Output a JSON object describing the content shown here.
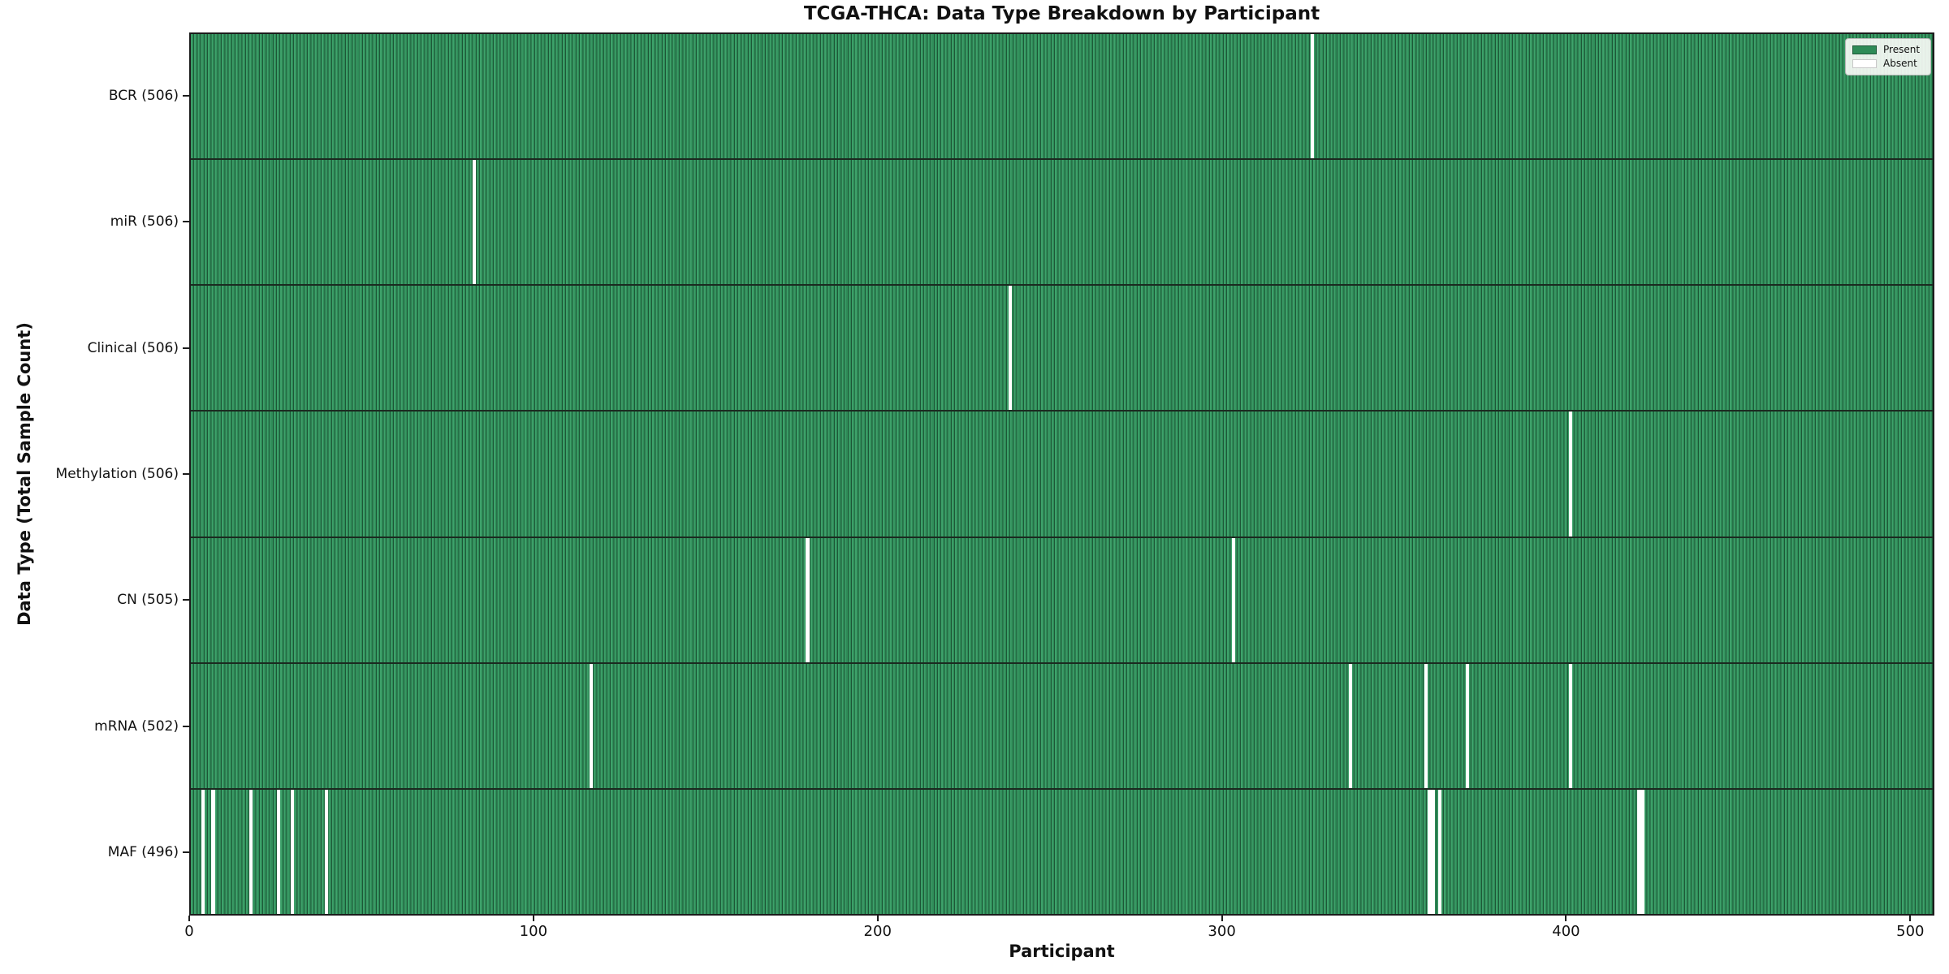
{
  "title": "TCGA-THCA: Data Type Breakdown by Participant",
  "xlabel": "Participant",
  "ylabel": "Data Type (Total Sample Count)",
  "legend": {
    "entries": [
      {
        "label": "Present",
        "swatch_color": "#2e8b57",
        "swatch_border": "#1d5737"
      },
      {
        "label": "Absent",
        "swatch_color": "#ffffff",
        "swatch_border": "#c8c8c8"
      }
    ]
  },
  "colors": {
    "present": "#2e8b57",
    "absent": "#ffffff",
    "bar_edge": "#1d5737",
    "axis": "#1c1c1c"
  },
  "chart_data": {
    "type": "heatmap",
    "title": "TCGA-THCA: Data Type Breakdown by Participant",
    "xlabel": "Participant",
    "ylabel": "Data Type (Total Sample Count)",
    "legend_position": "upper right",
    "n_participants": 507,
    "xlim": [
      0,
      507
    ],
    "x_ticks": [
      0,
      100,
      200,
      300,
      400,
      500
    ],
    "rows": [
      {
        "name": "BCR",
        "label": "BCR (506)",
        "present_count": 506,
        "absent_participants": [
          326
        ]
      },
      {
        "name": "miR",
        "label": "miR (506)",
        "present_count": 506,
        "absent_participants": [
          82
        ]
      },
      {
        "name": "Clinical",
        "label": "Clinical (506)",
        "present_count": 506,
        "absent_participants": [
          238
        ]
      },
      {
        "name": "Methylation",
        "label": "Methylation (506)",
        "present_count": 506,
        "absent_participants": [
          401
        ]
      },
      {
        "name": "CN",
        "label": "CN (505)",
        "present_count": 505,
        "absent_participants": [
          179,
          303
        ]
      },
      {
        "name": "mRNA",
        "label": "mRNA (502)",
        "present_count": 502,
        "absent_participants": [
          116,
          337,
          359,
          371,
          401
        ]
      },
      {
        "name": "MAF",
        "label": "MAF (496)",
        "present_count": 496,
        "absent_participants": [
          3,
          6,
          17,
          25,
          29,
          39,
          360,
          361,
          363,
          421,
          422
        ]
      }
    ]
  }
}
